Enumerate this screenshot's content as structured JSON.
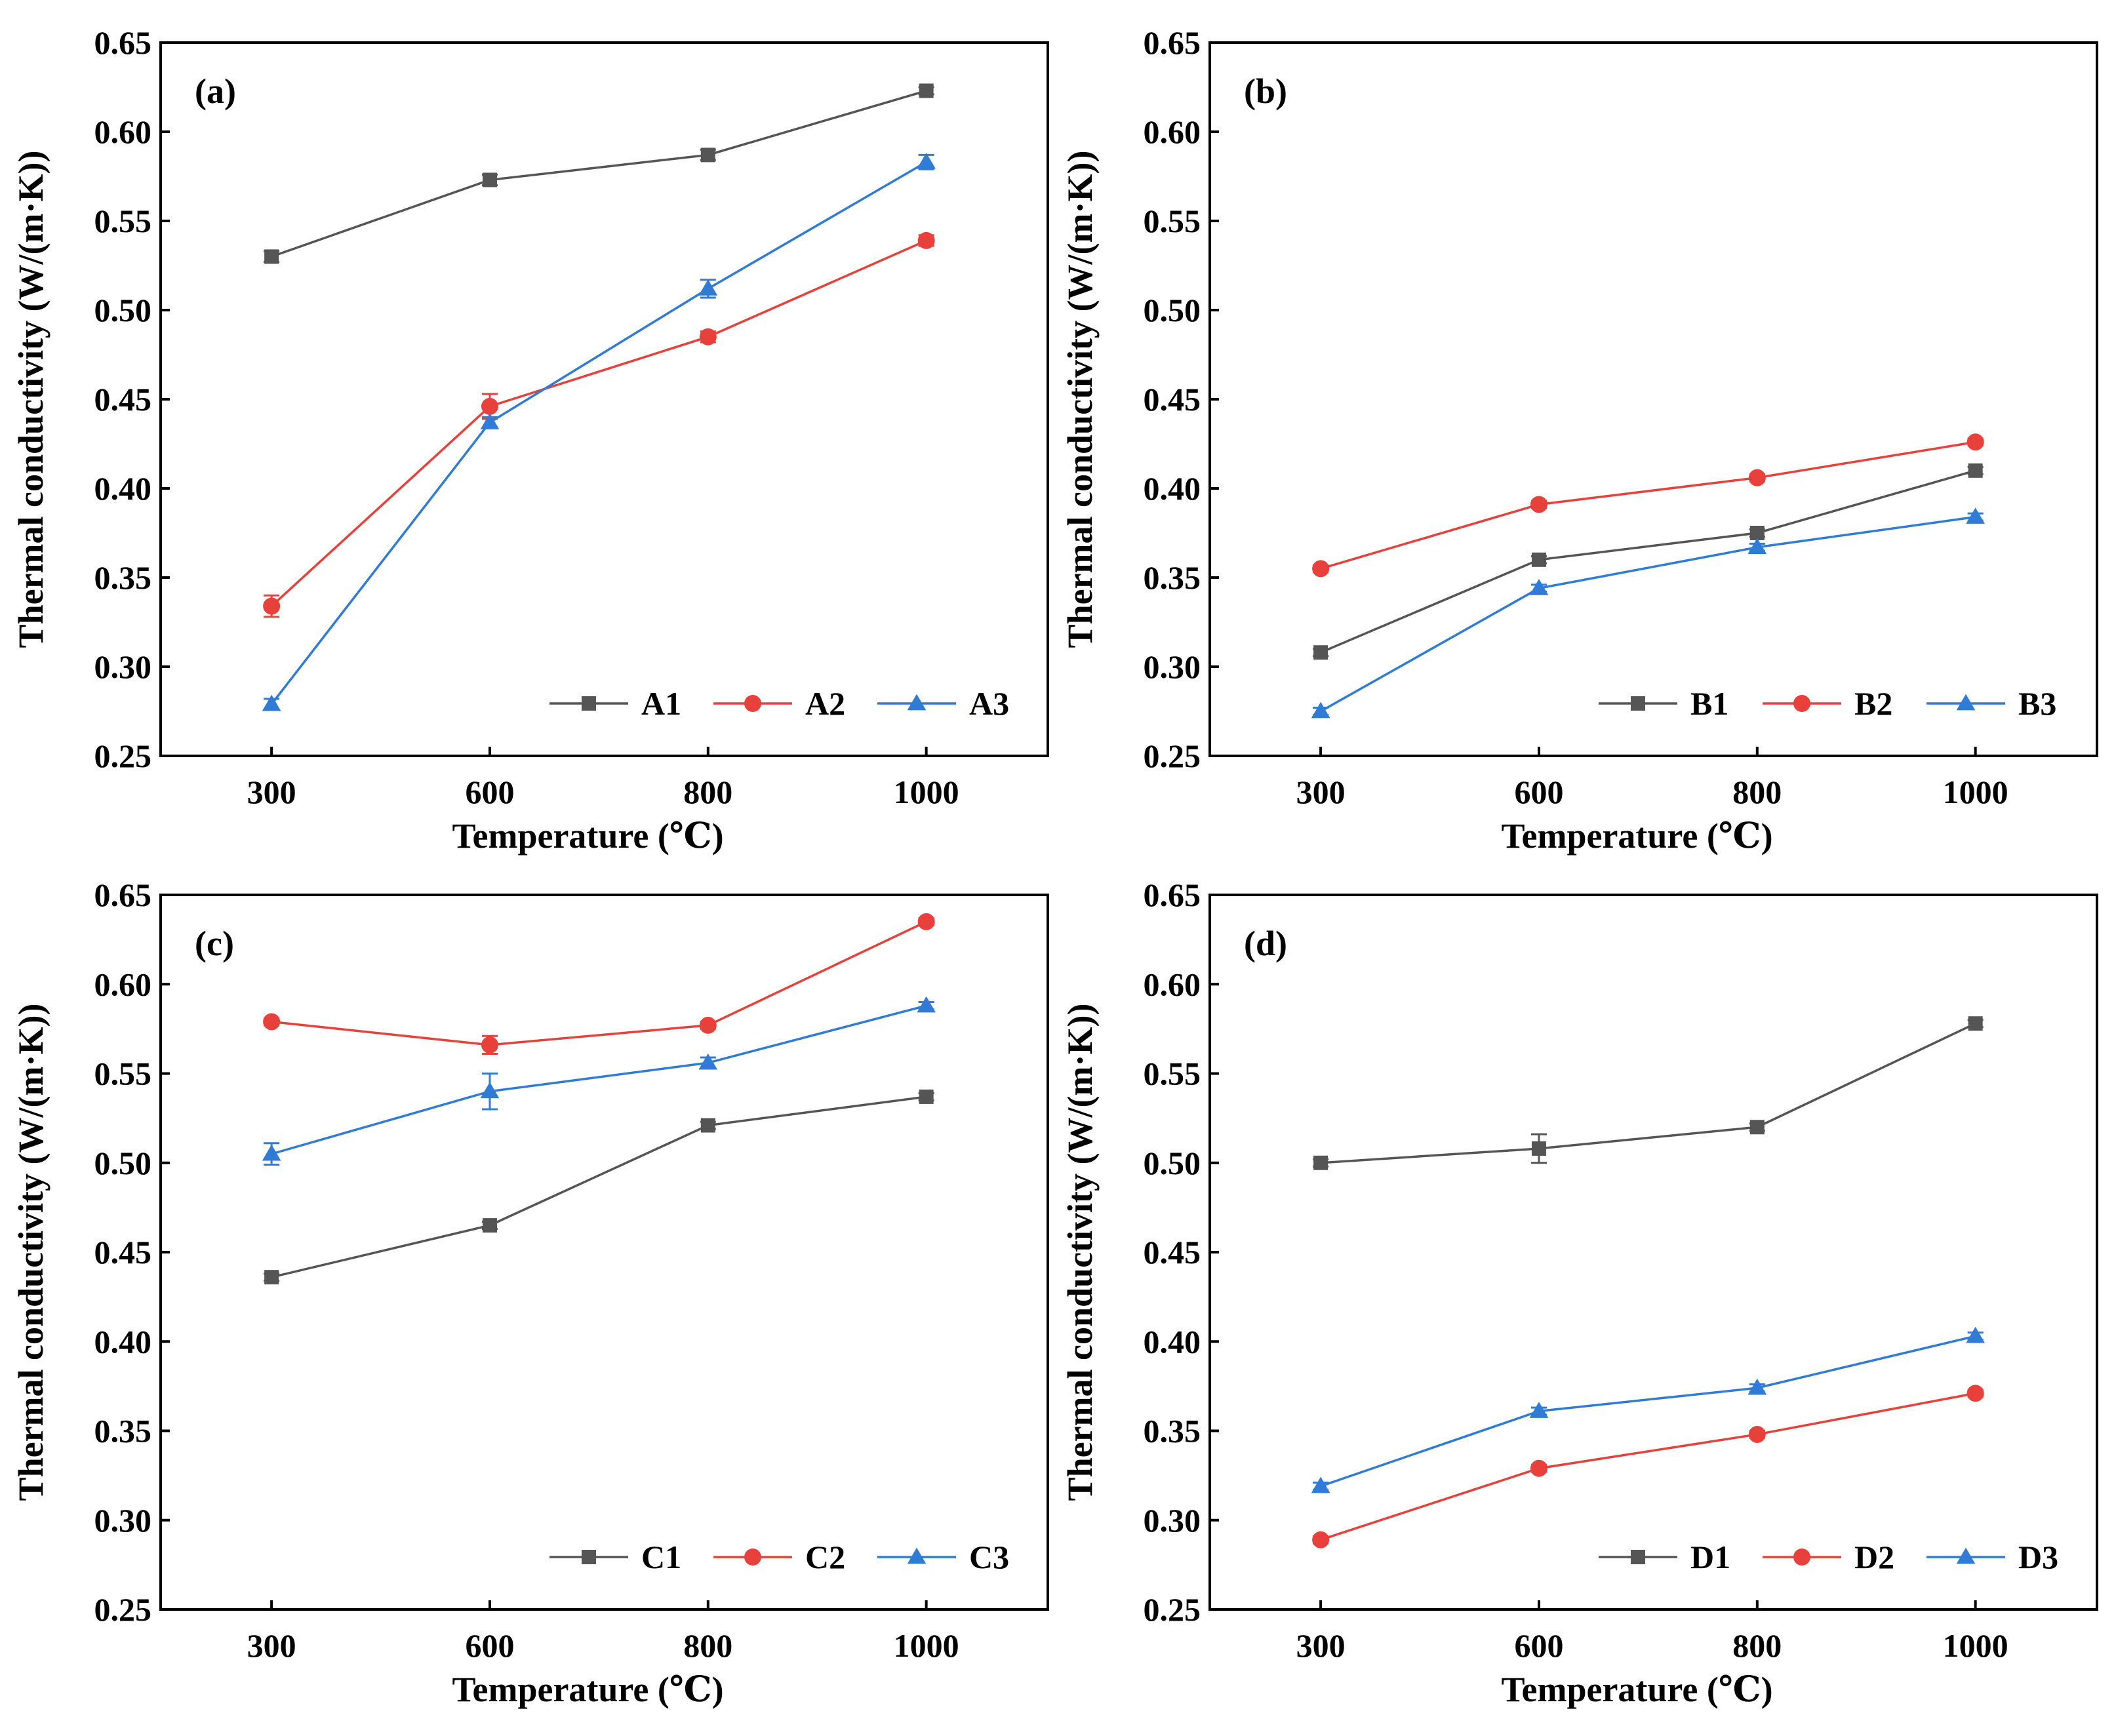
{
  "chart_data": [
    {
      "type": "line",
      "panel_label": "(a)",
      "xlabel": "Temperature (℃)",
      "ylabel": "Thermal conductivity (W/(m·K))",
      "x": [
        300,
        600,
        800,
        1000
      ],
      "x_tick_labels": [
        "300",
        "600",
        "800",
        "1000"
      ],
      "ylim": [
        0.25,
        0.65
      ],
      "y_tick_labels": [
        "0.25",
        "0.30",
        "0.35",
        "0.40",
        "0.45",
        "0.50",
        "0.55",
        "0.60",
        "0.65"
      ],
      "legend_position": "bottom-right",
      "series": [
        {
          "name": "A1",
          "color": "#555555",
          "marker": "square",
          "values": [
            0.53,
            0.573,
            0.587,
            0.623
          ],
          "errors": [
            0.003,
            0.003,
            0.003,
            0.002
          ]
        },
        {
          "name": "A2",
          "color": "#e8413c",
          "marker": "circle",
          "values": [
            0.334,
            0.446,
            0.485,
            0.539
          ],
          "errors": [
            0.006,
            0.007,
            0.003,
            0.003
          ]
        },
        {
          "name": "A3",
          "color": "#2f7bd6",
          "marker": "triangle",
          "values": [
            0.279,
            0.437,
            0.512,
            0.583
          ],
          "errors": [
            0.003,
            0.003,
            0.005,
            0.004
          ]
        }
      ]
    },
    {
      "type": "line",
      "panel_label": "(b)",
      "xlabel": "Temperature (℃)",
      "ylabel": "Thermal conductivity (W/(m·K))",
      "x": [
        300,
        600,
        800,
        1000
      ],
      "x_tick_labels": [
        "300",
        "600",
        "800",
        "1000"
      ],
      "ylim": [
        0.25,
        0.65
      ],
      "y_tick_labels": [
        "0.25",
        "0.30",
        "0.35",
        "0.40",
        "0.45",
        "0.50",
        "0.55",
        "0.60",
        "0.65"
      ],
      "legend_position": "bottom-right",
      "series": [
        {
          "name": "B1",
          "color": "#555555",
          "marker": "square",
          "values": [
            0.308,
            0.36,
            0.375,
            0.41
          ],
          "errors": [
            0.002,
            0.002,
            0.002,
            0.002
          ]
        },
        {
          "name": "B2",
          "color": "#e8413c",
          "marker": "circle",
          "values": [
            0.355,
            0.391,
            0.406,
            0.426
          ],
          "errors": [
            0.002,
            0.002,
            0.002,
            0.002
          ]
        },
        {
          "name": "B3",
          "color": "#2f7bd6",
          "marker": "triangle",
          "values": [
            0.275,
            0.344,
            0.367,
            0.384
          ],
          "errors": [
            0.002,
            0.002,
            0.002,
            0.002
          ]
        }
      ]
    },
    {
      "type": "line",
      "panel_label": "(c)",
      "xlabel": "Temperature (℃)",
      "ylabel": "Thermal conductivity (W/(m·K))",
      "x": [
        300,
        600,
        800,
        1000
      ],
      "x_tick_labels": [
        "300",
        "600",
        "800",
        "1000"
      ],
      "ylim": [
        0.25,
        0.65
      ],
      "y_tick_labels": [
        "0.25",
        "0.30",
        "0.35",
        "0.40",
        "0.45",
        "0.50",
        "0.55",
        "0.60",
        "0.65"
      ],
      "legend_position": "bottom-right",
      "series": [
        {
          "name": "C1",
          "color": "#555555",
          "marker": "square",
          "values": [
            0.436,
            0.465,
            0.521,
            0.537
          ],
          "errors": [
            0.002,
            0.002,
            0.002,
            0.002
          ]
        },
        {
          "name": "C2",
          "color": "#e8413c",
          "marker": "circle",
          "values": [
            0.579,
            0.566,
            0.577,
            0.635
          ],
          "errors": [
            0.002,
            0.005,
            0.002,
            0.002
          ]
        },
        {
          "name": "C3",
          "color": "#2f7bd6",
          "marker": "triangle",
          "values": [
            0.505,
            0.54,
            0.556,
            0.588
          ],
          "errors": [
            0.006,
            0.01,
            0.003,
            0.002
          ]
        }
      ]
    },
    {
      "type": "line",
      "panel_label": "(d)",
      "xlabel": "Temperature (℃)",
      "ylabel": "Thermal conductivity (W/(m·K))",
      "x": [
        300,
        600,
        800,
        1000
      ],
      "x_tick_labels": [
        "300",
        "600",
        "800",
        "1000"
      ],
      "ylim": [
        0.25,
        0.65
      ],
      "y_tick_labels": [
        "0.25",
        "0.30",
        "0.35",
        "0.40",
        "0.45",
        "0.50",
        "0.55",
        "0.60",
        "0.65"
      ],
      "legend_position": "bottom-right",
      "series": [
        {
          "name": "D1",
          "color": "#555555",
          "marker": "square",
          "values": [
            0.5,
            0.508,
            0.52,
            0.578
          ],
          "errors": [
            0.002,
            0.008,
            0.002,
            0.002
          ]
        },
        {
          "name": "D2",
          "color": "#e8413c",
          "marker": "circle",
          "values": [
            0.289,
            0.329,
            0.348,
            0.371
          ],
          "errors": [
            0.002,
            0.002,
            0.002,
            0.002
          ]
        },
        {
          "name": "D3",
          "color": "#2f7bd6",
          "marker": "triangle",
          "values": [
            0.319,
            0.361,
            0.374,
            0.403
          ],
          "errors": [
            0.002,
            0.002,
            0.002,
            0.002
          ]
        }
      ]
    }
  ]
}
